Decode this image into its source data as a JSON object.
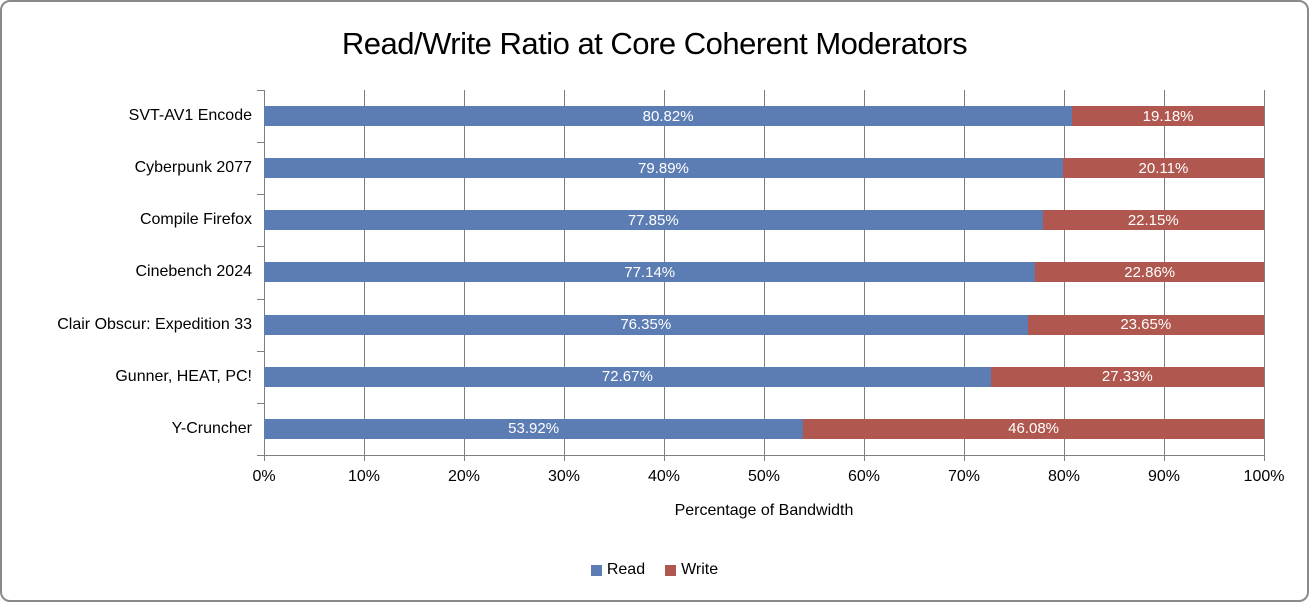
{
  "chart_data": {
    "type": "bar",
    "orientation": "horizontal",
    "stacked": true,
    "title": "Read/Write Ratio at Core Coherent Moderators",
    "xlabel": "Percentage of Bandwidth",
    "categories": [
      "SVT-AV1 Encode",
      "Cyberpunk 2077",
      "Compile Firefox",
      "Cinebench 2024",
      "Clair Obscur: Expedition 33",
      "Gunner, HEAT, PC!",
      "Y-Cruncher"
    ],
    "series": [
      {
        "name": "Read",
        "color": "#5C7DB3",
        "values": [
          80.82,
          79.89,
          77.85,
          77.14,
          76.35,
          72.67,
          53.92
        ]
      },
      {
        "name": "Write",
        "color": "#B0584F",
        "values": [
          19.18,
          20.11,
          22.15,
          22.86,
          23.65,
          27.33,
          46.08
        ]
      }
    ],
    "x_ticks": [
      "0%",
      "10%",
      "20%",
      "30%",
      "40%",
      "50%",
      "60%",
      "70%",
      "80%",
      "90%",
      "100%"
    ],
    "xlim": [
      0,
      100
    ],
    "grid": "vertical",
    "gridline_color": "#7f7f7f",
    "data_label_color": "#ffffff",
    "legend_position": "bottom",
    "frame_border_color": "#8a8a8a"
  }
}
